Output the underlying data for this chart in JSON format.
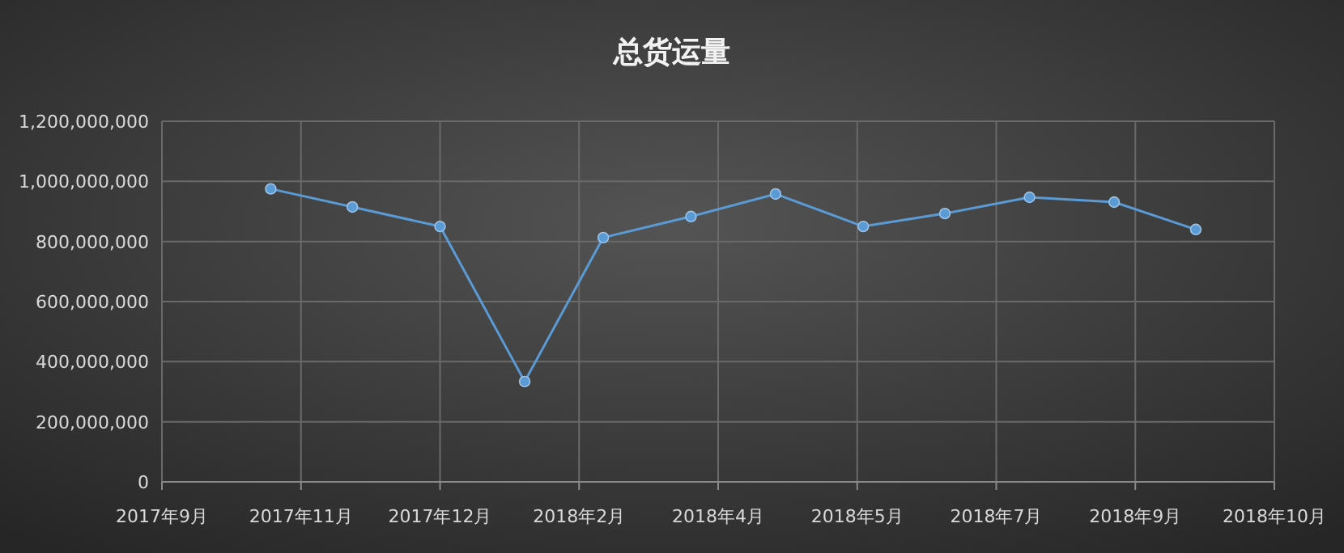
{
  "chart_data": {
    "type": "line",
    "title": "总货运量",
    "x": [
      "2017-10-07",
      "2017-11-03",
      "2017-12-02",
      "2017-12-30",
      "2018-01-25",
      "2018-02-23",
      "2018-03-23",
      "2018-04-21",
      "2018-05-18",
      "2018-06-15",
      "2018-07-13",
      "2018-08-09"
    ],
    "series": [
      {
        "color": "#5b9bd5",
        "values": [
          975000000,
          915000000,
          850000000,
          334000000,
          813000000,
          883000000,
          958000000,
          850000000,
          893000000,
          947000000,
          931000000,
          840000000
        ]
      }
    ],
    "xlim": [
      "2017-09-01",
      "2018-09-04"
    ],
    "xticks": [
      {
        "value": "2017-09-01",
        "label": "2017年9月"
      },
      {
        "value": "2017-10-17",
        "label": "2017年11月"
      },
      {
        "value": "2017-12-02",
        "label": "2017年12月"
      },
      {
        "value": "2018-01-17",
        "label": "2018年2月"
      },
      {
        "value": "2018-03-04",
        "label": "2018年4月"
      },
      {
        "value": "2018-04-19",
        "label": "2018年5月"
      },
      {
        "value": "2018-06-04",
        "label": "2018年7月"
      },
      {
        "value": "2018-07-20",
        "label": "2018年9月"
      },
      {
        "value": "2018-09-04",
        "label": "2018年10月"
      }
    ],
    "ylim": [
      0,
      1200000000
    ],
    "yticks": [
      0,
      {
        "value": 200000000,
        "label": "200,000,000"
      },
      {
        "value": 400000000,
        "label": "400,000,000"
      },
      {
        "value": 600000000,
        "label": "600,000,000"
      },
      {
        "value": 800000000,
        "label": "800,000,000"
      },
      {
        "value": 1000000000,
        "label": "1,000,000,000"
      },
      {
        "value": 1200000000,
        "label": "1,200,000,000"
      }
    ],
    "grid": true,
    "marker": "circle",
    "line_style": "solid"
  }
}
